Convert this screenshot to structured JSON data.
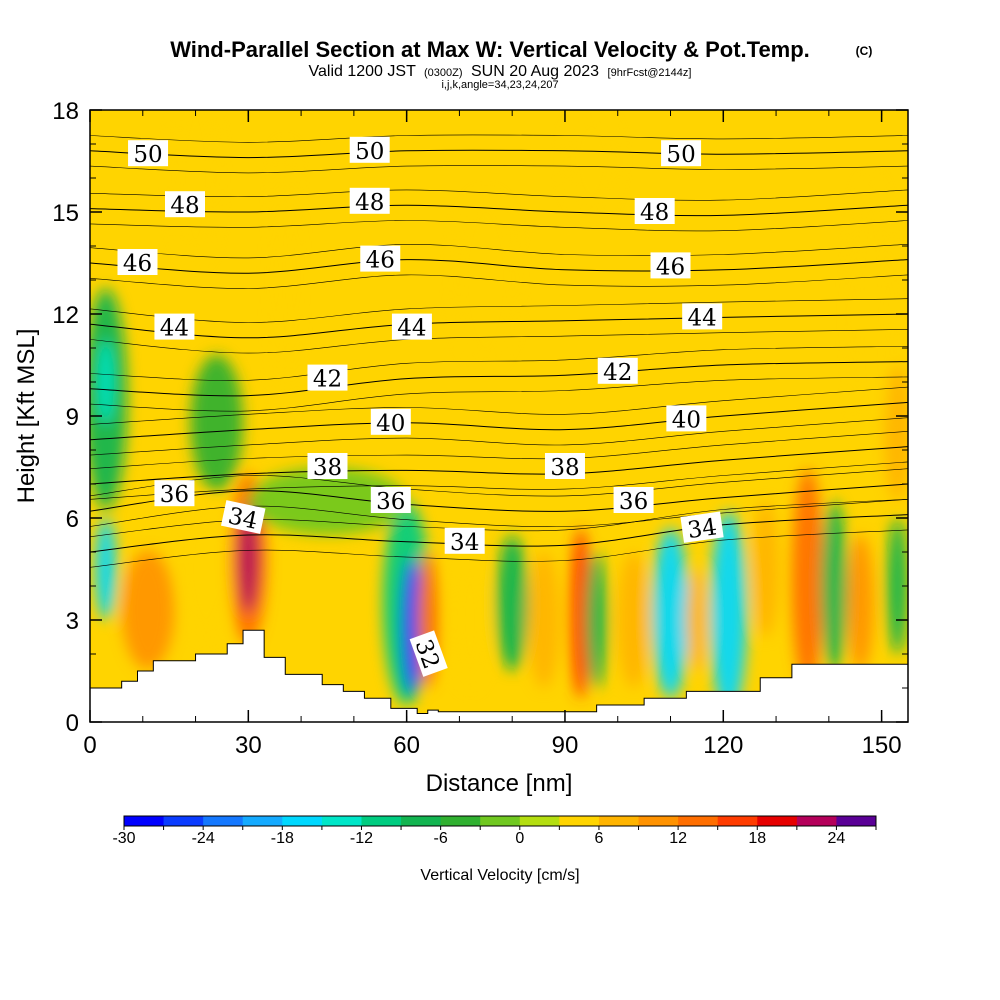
{
  "title": {
    "main": "Wind-Parallel Section at Max W: Vertical Velocity & Pot.Temp.",
    "copyright": "(C)",
    "valid_a": "Valid 1200 JST",
    "valid_utc": "(0300Z)",
    "valid_b": "SUN 20 Aug 2023",
    "forecast": "[9hrFcst@2144z]",
    "indices": "i,j,k,angle=34,23,24,207"
  },
  "colors": {
    "background_fill": "#ffd400",
    "terrain": "#ffffff",
    "contour_line": "#000000"
  },
  "chart_data": {
    "type": "heatmap",
    "xlabel": "Distance [nm]",
    "ylabel": "Height [Kft MSL]",
    "xlim": [
      0,
      155
    ],
    "ylim": [
      0,
      18
    ],
    "x_ticks": [
      "0",
      "30",
      "60",
      "90",
      "120",
      "150"
    ],
    "y_ticks": [
      "0",
      "3",
      "6",
      "9",
      "12",
      "15",
      "18"
    ],
    "colorbar": {
      "label": "Vertical Velocity [cm/s]",
      "tick_labels": [
        "-30",
        "-24",
        "-18",
        "-12",
        "-6",
        "0",
        "6",
        "12",
        "18",
        "24"
      ],
      "min": -30,
      "max": 24,
      "step": 3,
      "colors": [
        "#0000ff",
        "#0a3cff",
        "#1478ff",
        "#14aaff",
        "#00d8ff",
        "#00e6c8",
        "#00cc80",
        "#12b450",
        "#30b030",
        "#70c820",
        "#b4de10",
        "#ffd400",
        "#ffb400",
        "#ff9200",
        "#ff6e00",
        "#ff3c00",
        "#e60000",
        "#b4005a",
        "#5a0096"
      ]
    },
    "terrain_profile": {
      "x": [
        0,
        6,
        6,
        9,
        9,
        12,
        12,
        20,
        20,
        26,
        26,
        29,
        29,
        33,
        33,
        37,
        37,
        44,
        44,
        48,
        48,
        52,
        52,
        57,
        57,
        62,
        62,
        64,
        64,
        66,
        66,
        72,
        72,
        86,
        86,
        96,
        96,
        105,
        105,
        113,
        113,
        127,
        127,
        133,
        133,
        155
      ],
      "y": [
        1.0,
        1.0,
        1.2,
        1.2,
        1.5,
        1.5,
        1.8,
        1.8,
        2.0,
        2.0,
        2.3,
        2.3,
        2.7,
        2.7,
        1.9,
        1.9,
        1.4,
        1.4,
        1.1,
        1.1,
        0.9,
        0.9,
        0.7,
        0.7,
        0.4,
        0.4,
        0.25,
        0.25,
        0.35,
        0.35,
        0.3,
        0.3,
        0.3,
        0.3,
        0.3,
        0.3,
        0.5,
        0.5,
        0.7,
        0.7,
        0.9,
        0.9,
        1.3,
        1.3,
        1.7,
        1.7
      ]
    },
    "vertical_velocity_cells": [
      {
        "x": 3,
        "y": 9.5,
        "w": 8,
        "h": 6.5,
        "v": -8
      },
      {
        "x": 3,
        "y": 4.5,
        "w": 4,
        "h": 3,
        "v": -18
      },
      {
        "x": 3,
        "y": 10,
        "w": 3,
        "h": 2.5,
        "v": -15
      },
      {
        "x": 11,
        "y": 3.3,
        "w": 10,
        "h": 3.5,
        "v": 9
      },
      {
        "x": 22,
        "y": 4.5,
        "w": 10,
        "h": 4,
        "v": 3
      },
      {
        "x": 24,
        "y": 8.8,
        "w": 10,
        "h": 4,
        "v": -6
      },
      {
        "x": 30,
        "y": 4.8,
        "w": 7,
        "h": 5,
        "v": 12
      },
      {
        "x": 30,
        "y": 4.8,
        "w": 4,
        "h": 3.2,
        "v": 22
      },
      {
        "x": 60,
        "y": 3.5,
        "w": 9,
        "h": 6,
        "v": -10
      },
      {
        "x": 61,
        "y": 2.8,
        "w": 4,
        "h": 4,
        "v": -26
      },
      {
        "x": 64,
        "y": 3.0,
        "w": 4,
        "h": 4,
        "v": 12
      },
      {
        "x": 72,
        "y": 3.0,
        "w": 7,
        "h": 4,
        "v": 3
      },
      {
        "x": 80,
        "y": 3.5,
        "w": 6,
        "h": 4,
        "v": -8
      },
      {
        "x": 86,
        "y": 3.0,
        "w": 6,
        "h": 4,
        "v": 6
      },
      {
        "x": 93,
        "y": 3.2,
        "w": 4,
        "h": 5,
        "v": 15
      },
      {
        "x": 96,
        "y": 3.0,
        "w": 4,
        "h": 4,
        "v": -8
      },
      {
        "x": 103,
        "y": 3.0,
        "w": 6,
        "h": 4,
        "v": 6
      },
      {
        "x": 110,
        "y": 3.2,
        "w": 7,
        "h": 5,
        "v": -16
      },
      {
        "x": 115,
        "y": 3.0,
        "w": 4,
        "h": 3,
        "v": 6
      },
      {
        "x": 121,
        "y": 3.2,
        "w": 7,
        "h": 6,
        "v": -18
      },
      {
        "x": 128,
        "y": 4.5,
        "w": 5,
        "h": 4,
        "v": 6
      },
      {
        "x": 136,
        "y": 4.2,
        "w": 6,
        "h": 6.5,
        "v": 12
      },
      {
        "x": 141,
        "y": 4.0,
        "w": 5,
        "h": 5,
        "v": -8
      },
      {
        "x": 146,
        "y": 3.5,
        "w": 5,
        "h": 4,
        "v": 9
      },
      {
        "x": 153,
        "y": 4.0,
        "w": 4,
        "h": 4,
        "v": -8
      },
      {
        "x": 153,
        "y": 8.5,
        "w": 5,
        "h": 4,
        "v": 6
      },
      {
        "x": 20,
        "y": 16,
        "w": 9,
        "h": 5,
        "v": 3
      },
      {
        "x": 75,
        "y": 13,
        "w": 12,
        "h": 5,
        "v": 3
      },
      {
        "x": 95,
        "y": 16.5,
        "w": 10,
        "h": 3,
        "v": 3
      },
      {
        "x": 148,
        "y": 12,
        "w": 8,
        "h": 8,
        "v": 3
      },
      {
        "x": 37,
        "y": 13,
        "w": 5,
        "h": 8,
        "v": 3
      },
      {
        "x": 45,
        "y": 6.5,
        "w": 30,
        "h": 2,
        "v": -3
      }
    ],
    "theta_contours": [
      {
        "level": 50,
        "x": [
          0,
          30,
          60,
          90,
          120,
          155
        ],
        "y": [
          16.8,
          16.6,
          16.8,
          16.8,
          16.7,
          16.8
        ]
      },
      {
        "level": 48,
        "x": [
          0,
          30,
          60,
          90,
          120,
          155
        ],
        "y": [
          15.1,
          15.0,
          15.2,
          15.0,
          14.9,
          15.2
        ]
      },
      {
        "level": 46,
        "x": [
          0,
          30,
          60,
          90,
          120,
          155
        ],
        "y": [
          13.5,
          13.2,
          13.6,
          13.3,
          13.3,
          13.6
        ]
      },
      {
        "level": 44,
        "x": [
          0,
          30,
          60,
          90,
          120,
          155
        ],
        "y": [
          11.7,
          11.3,
          11.7,
          11.8,
          11.9,
          12.0
        ]
      },
      {
        "level": 42,
        "x": [
          0,
          30,
          60,
          90,
          120,
          155
        ],
        "y": [
          9.8,
          9.6,
          10.1,
          10.2,
          10.5,
          10.6
        ]
      },
      {
        "level": 40,
        "x": [
          0,
          30,
          60,
          90,
          120,
          155
        ],
        "y": [
          8.3,
          8.6,
          8.8,
          8.6,
          9.0,
          9.4
        ]
      },
      {
        "level": 38,
        "x": [
          0,
          30,
          60,
          90,
          120,
          155
        ],
        "y": [
          7.0,
          7.3,
          7.4,
          7.3,
          7.7,
          8.1
        ]
      },
      {
        "level": 36,
        "x": [
          0,
          30,
          60,
          90,
          120,
          155
        ],
        "y": [
          6.2,
          6.8,
          6.4,
          6.2,
          6.6,
          7.0
        ]
      },
      {
        "level": 34,
        "x": [
          0,
          30,
          60,
          90,
          120,
          155
        ],
        "y": [
          5.0,
          5.5,
          5.3,
          5.2,
          5.8,
          6.1
        ]
      },
      {
        "level": 32,
        "x": [
          63,
          64,
          66
        ],
        "y": [
          1.7,
          2.0,
          1.6
        ]
      }
    ],
    "contour_labels": [
      {
        "text": "50",
        "x": 11,
        "y": 16.7,
        "angle": 0
      },
      {
        "text": "50",
        "x": 53,
        "y": 16.8,
        "angle": 0
      },
      {
        "text": "50",
        "x": 112,
        "y": 16.7,
        "angle": 0
      },
      {
        "text": "48",
        "x": 18,
        "y": 15.2,
        "angle": 0
      },
      {
        "text": "48",
        "x": 53,
        "y": 15.3,
        "angle": 0
      },
      {
        "text": "48",
        "x": 107,
        "y": 15.0,
        "angle": 0
      },
      {
        "text": "46",
        "x": 9,
        "y": 13.5,
        "angle": 0
      },
      {
        "text": "46",
        "x": 55,
        "y": 13.6,
        "angle": 0
      },
      {
        "text": "46",
        "x": 110,
        "y": 13.4,
        "angle": 0
      },
      {
        "text": "44",
        "x": 16,
        "y": 11.6,
        "angle": 0
      },
      {
        "text": "44",
        "x": 61,
        "y": 11.6,
        "angle": 0
      },
      {
        "text": "44",
        "x": 116,
        "y": 11.9,
        "angle": 0
      },
      {
        "text": "42",
        "x": 45,
        "y": 10.1,
        "angle": 0
      },
      {
        "text": "42",
        "x": 100,
        "y": 10.3,
        "angle": 0
      },
      {
        "text": "40",
        "x": 57,
        "y": 8.8,
        "angle": 0
      },
      {
        "text": "40",
        "x": 113,
        "y": 8.9,
        "angle": 0
      },
      {
        "text": "38",
        "x": 45,
        "y": 7.5,
        "angle": 0
      },
      {
        "text": "38",
        "x": 90,
        "y": 7.5,
        "angle": 0
      },
      {
        "text": "36",
        "x": 16,
        "y": 6.7,
        "angle": 0
      },
      {
        "text": "36",
        "x": 57,
        "y": 6.5,
        "angle": 0
      },
      {
        "text": "36",
        "x": 103,
        "y": 6.5,
        "angle": 0
      },
      {
        "text": "34",
        "x": 29,
        "y": 6.0,
        "angle": 12
      },
      {
        "text": "34",
        "x": 71,
        "y": 5.3,
        "angle": 0
      },
      {
        "text": "34",
        "x": 116,
        "y": 5.7,
        "angle": -8
      },
      {
        "text": "32",
        "x": 64,
        "y": 2.0,
        "angle": 70
      }
    ]
  }
}
